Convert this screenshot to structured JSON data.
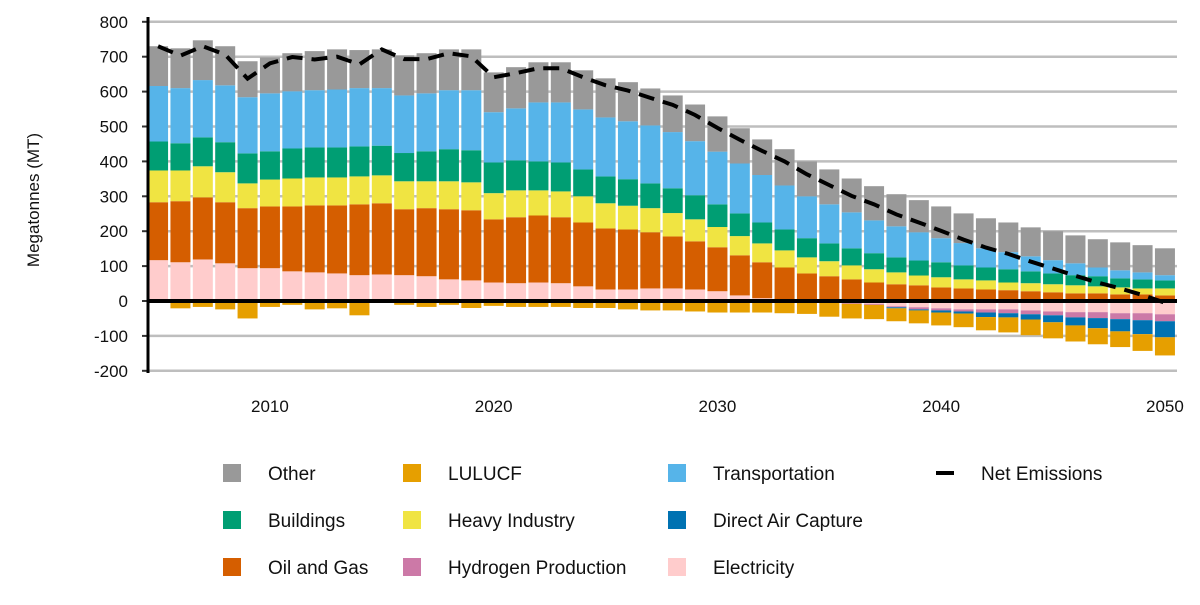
{
  "chart_data": {
    "type": "bar",
    "stacked": true,
    "xlabel": "",
    "ylabel": "Megatonnes (MT)",
    "ylim": [
      -200,
      800
    ],
    "yticks": [
      -200,
      -100,
      0,
      100,
      200,
      300,
      400,
      500,
      600,
      700,
      800
    ],
    "xticks": [
      2010,
      2020,
      2030,
      2040,
      2050
    ],
    "grid": "horizontal",
    "legend_position": "bottom",
    "x": [
      2005,
      2006,
      2007,
      2008,
      2009,
      2010,
      2011,
      2012,
      2013,
      2014,
      2015,
      2016,
      2017,
      2018,
      2019,
      2020,
      2021,
      2022,
      2023,
      2024,
      2025,
      2026,
      2027,
      2028,
      2029,
      2030,
      2031,
      2032,
      2033,
      2034,
      2035,
      2036,
      2037,
      2038,
      2039,
      2040,
      2041,
      2042,
      2043,
      2044,
      2045,
      2046,
      2047,
      2048,
      2049,
      2050
    ],
    "series": [
      {
        "name": "Electricity",
        "color": "#FFCCCC",
        "values": [
          117,
          111,
          119,
          108,
          94,
          94,
          85,
          82,
          79,
          74,
          76,
          74,
          71,
          62,
          59,
          53,
          51,
          53,
          51,
          42,
          33,
          33,
          36,
          36,
          33,
          28,
          16,
          8,
          0,
          0,
          0,
          -5,
          -8,
          -15,
          -18,
          -21,
          -24,
          -24,
          -24,
          -27,
          -30,
          -32,
          -32,
          -35,
          -35,
          -38
        ]
      },
      {
        "name": "Oil and Gas",
        "color": "#D55E00",
        "values": [
          166,
          175,
          178,
          175,
          172,
          177,
          186,
          192,
          195,
          203,
          204,
          189,
          195,
          201,
          201,
          181,
          189,
          192,
          189,
          183,
          175,
          172,
          161,
          149,
          138,
          126,
          115,
          103,
          96,
          79,
          71,
          62,
          53,
          48,
          45,
          39,
          36,
          33,
          31,
          28,
          25,
          22,
          22,
          19,
          19,
          16
        ]
      },
      {
        "name": "Heavy Industry",
        "color": "#F0E442",
        "values": [
          91,
          88,
          89,
          86,
          71,
          77,
          80,
          80,
          80,
          80,
          80,
          80,
          77,
          80,
          80,
          75,
          77,
          72,
          74,
          75,
          72,
          68,
          69,
          67,
          63,
          58,
          55,
          54,
          49,
          46,
          43,
          40,
          38,
          34,
          28,
          29,
          26,
          26,
          22,
          23,
          23,
          23,
          20,
          20,
          17,
          20
        ]
      },
      {
        "name": "Buildings",
        "color": "#009E73",
        "values": [
          83,
          78,
          83,
          86,
          86,
          81,
          86,
          86,
          86,
          86,
          85,
          81,
          86,
          92,
          92,
          88,
          86,
          83,
          83,
          77,
          77,
          76,
          71,
          71,
          69,
          65,
          65,
          60,
          60,
          55,
          51,
          49,
          46,
          43,
          43,
          43,
          40,
          37,
          38,
          34,
          31,
          29,
          29,
          26,
          26,
          23
        ]
      },
      {
        "name": "Transportation",
        "color": "#56B4E9",
        "values": [
          159,
          158,
          164,
          163,
          161,
          166,
          164,
          164,
          166,
          167,
          165,
          165,
          166,
          169,
          172,
          144,
          149,
          169,
          172,
          172,
          169,
          166,
          166,
          161,
          155,
          151,
          143,
          136,
          126,
          120,
          112,
          103,
          94,
          89,
          81,
          69,
          64,
          55,
          49,
          43,
          38,
          34,
          25,
          23,
          20,
          15
        ]
      },
      {
        "name": "Other",
        "color": "#999999",
        "values": [
          114,
          114,
          114,
          112,
          103,
          103,
          109,
          112,
          115,
          109,
          111,
          115,
          115,
          117,
          117,
          114,
          118,
          115,
          115,
          112,
          112,
          112,
          106,
          105,
          105,
          101,
          101,
          102,
          104,
          100,
          100,
          97,
          98,
          92,
          92,
          91,
          85,
          86,
          85,
          83,
          83,
          80,
          81,
          80,
          78,
          77
        ]
      },
      {
        "name": "Hydrogen Production",
        "color": "#CC79A7",
        "values": [
          0,
          0,
          0,
          0,
          0,
          0,
          0,
          0,
          0,
          0,
          0,
          0,
          0,
          0,
          0,
          0,
          0,
          0,
          0,
          0,
          0,
          0,
          0,
          0,
          0,
          0,
          0,
          0,
          0,
          -2,
          -2,
          -3,
          -3,
          -3,
          -6,
          -6,
          -6,
          -9,
          -11,
          -11,
          -11,
          -15,
          -17,
          -17,
          -20,
          -20
        ]
      },
      {
        "name": "Direct Air Capture",
        "color": "#0072B2",
        "values": [
          0,
          0,
          0,
          0,
          0,
          0,
          0,
          0,
          0,
          0,
          0,
          0,
          0,
          0,
          0,
          0,
          0,
          0,
          0,
          0,
          0,
          0,
          0,
          0,
          0,
          0,
          0,
          0,
          0,
          0,
          0,
          0,
          0,
          -3,
          -3,
          -6,
          -6,
          -13,
          -12,
          -15,
          -20,
          -23,
          -29,
          -35,
          -40,
          -46
        ]
      },
      {
        "name": "LULUCF",
        "color": "#E69F00",
        "values": [
          0,
          -21,
          -17,
          -24,
          -50,
          -17,
          -11,
          -24,
          -21,
          -41,
          0,
          -11,
          -17,
          -11,
          -20,
          -14,
          -17,
          -17,
          -17,
          -20,
          -20,
          -24,
          -27,
          -27,
          -30,
          -33,
          -33,
          -33,
          -35,
          -35,
          -43,
          -42,
          -41,
          -37,
          -37,
          -37,
          -39,
          -38,
          -43,
          -45,
          -46,
          -46,
          -46,
          -45,
          -48,
          -52
        ]
      }
    ],
    "line_series": {
      "name": "Net Emissions",
      "color": "#000000",
      "style": "dashed",
      "computed_as": "sum"
    },
    "legend": [
      {
        "label": "Other",
        "color": "#999999",
        "kind": "square"
      },
      {
        "label": "LULUCF",
        "color": "#E69F00",
        "kind": "square"
      },
      {
        "label": "Transportation",
        "color": "#56B4E9",
        "kind": "square"
      },
      {
        "label": "Net Emissions",
        "color": "#000000",
        "kind": "dash"
      },
      {
        "label": "Buildings",
        "color": "#009E73",
        "kind": "square"
      },
      {
        "label": "Heavy Industry",
        "color": "#F0E442",
        "kind": "square"
      },
      {
        "label": "Direct Air Capture",
        "color": "#0072B2",
        "kind": "square"
      },
      {
        "label": "Oil and Gas",
        "color": "#D55E00",
        "kind": "square"
      },
      {
        "label": "Hydrogen Production",
        "color": "#CC79A7",
        "kind": "square"
      },
      {
        "label": "Electricity",
        "color": "#FFCCCC",
        "kind": "square"
      }
    ]
  }
}
